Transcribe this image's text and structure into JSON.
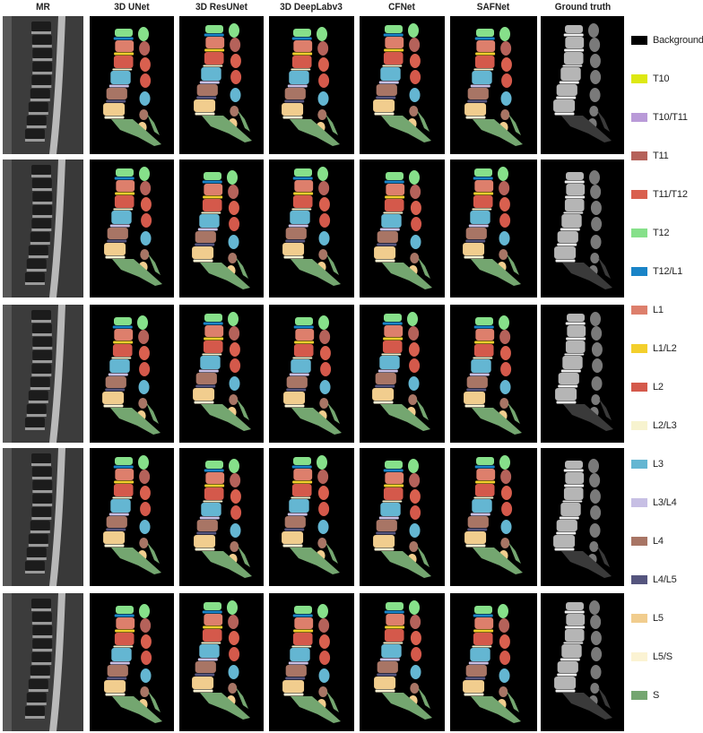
{
  "columns": [
    "MR",
    "3D UNet",
    "3D ResUNet",
    "3D DeepLabv3",
    "CFNet",
    "SAFNet",
    "Ground truth"
  ],
  "legend": [
    {
      "label": "Background",
      "color": "#000000"
    },
    {
      "label": "T10",
      "color": "#dde813"
    },
    {
      "label": "T10/T11",
      "color": "#b99ad8"
    },
    {
      "label": "T11",
      "color": "#b5625a"
    },
    {
      "label": "T11/T12",
      "color": "#d9604f"
    },
    {
      "label": "T12",
      "color": "#86e08a"
    },
    {
      "label": "T12/L1",
      "color": "#1a84c7"
    },
    {
      "label": "L1",
      "color": "#dd7f6c"
    },
    {
      "label": "L1/L2",
      "color": "#f3cf2c"
    },
    {
      "label": "L2",
      "color": "#d4594b"
    },
    {
      "label": "L2/L3",
      "color": "#f7f3cf"
    },
    {
      "label": "L3",
      "color": "#64b6d2"
    },
    {
      "label": "L3/L4",
      "color": "#c7bfe4"
    },
    {
      "label": "L4",
      "color": "#a87565"
    },
    {
      "label": "L4/L5",
      "color": "#55557e"
    },
    {
      "label": "L5",
      "color": "#f1cd8e"
    },
    {
      "label": "L5/S",
      "color": "#fbf3d3"
    },
    {
      "label": "S",
      "color": "#74a670"
    }
  ]
}
